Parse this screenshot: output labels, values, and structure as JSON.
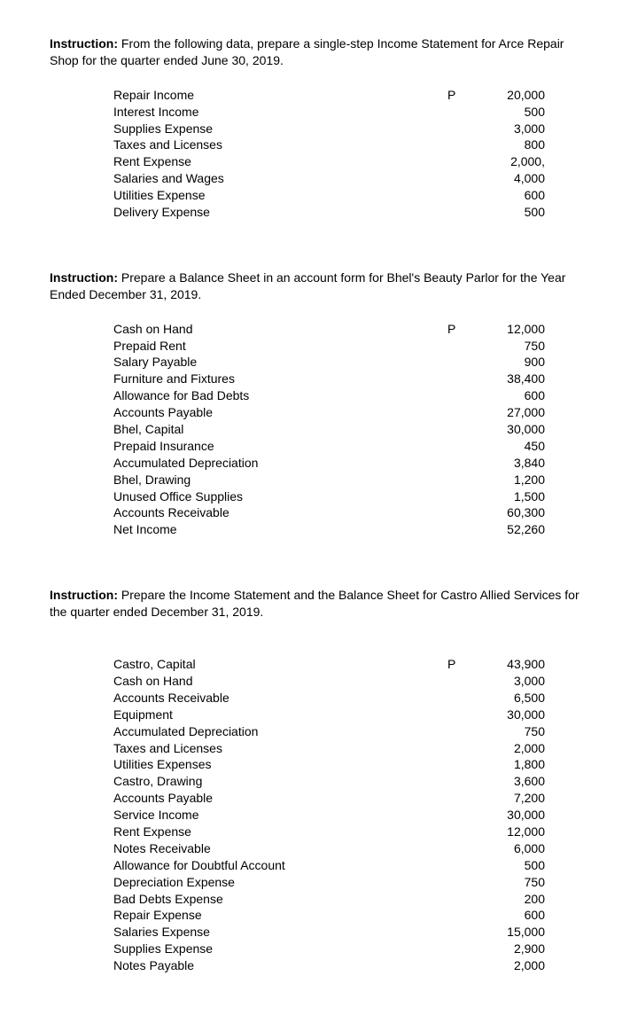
{
  "sections": [
    {
      "instruction_label": "Instruction:",
      "instruction_text": " From the following data, prepare a single-step Income Statement for Arce Repair Shop for the quarter ended June 30, 2019.",
      "currency": "P",
      "rows": [
        {
          "label": "Repair Income",
          "amount": "20,000",
          "showCurrency": true
        },
        {
          "label": "Interest Income",
          "amount": "500"
        },
        {
          "label": "Supplies Expense",
          "amount": "3,000"
        },
        {
          "label": "Taxes and Licenses",
          "amount": "800"
        },
        {
          "label": "Rent Expense",
          "amount": "2,000,"
        },
        {
          "label": "Salaries and Wages",
          "amount": "4,000"
        },
        {
          "label": "Utilities Expense",
          "amount": "600"
        },
        {
          "label": "Delivery Expense",
          "amount": "500"
        }
      ]
    },
    {
      "instruction_label": "Instruction:",
      "instruction_text": " Prepare a Balance Sheet in an account form for Bhel's Beauty Parlor for the Year Ended December 31, 2019.",
      "currency": "P",
      "rows": [
        {
          "label": "Cash on Hand",
          "amount": "12,000",
          "showCurrency": true
        },
        {
          "label": "Prepaid Rent",
          "amount": "750"
        },
        {
          "label": "Salary Payable",
          "amount": "900"
        },
        {
          "label": "Furniture and Fixtures",
          "amount": "38,400"
        },
        {
          "label": "Allowance for Bad Debts",
          "amount": "600"
        },
        {
          "label": "Accounts Payable",
          "amount": "27,000"
        },
        {
          "label": "Bhel, Capital",
          "amount": "30,000"
        },
        {
          "label": "Prepaid Insurance",
          "amount": "450"
        },
        {
          "label": "Accumulated Depreciation",
          "amount": "3,840"
        },
        {
          "label": "Bhel, Drawing",
          "amount": "1,200"
        },
        {
          "label": "Unused Office Supplies",
          "amount": "1,500"
        },
        {
          "label": "Accounts Receivable",
          "amount": "60,300"
        },
        {
          "label": "Net Income",
          "amount": "52,260"
        }
      ]
    },
    {
      "instruction_label": "Instruction:",
      "instruction_text": " Prepare the Income Statement and the Balance Sheet for Castro Allied Services for the quarter ended December 31, 2019.",
      "currency": "P",
      "extra_gap_before_rows": true,
      "rows": [
        {
          "label": "Castro, Capital",
          "amount": "43,900",
          "showCurrency": true
        },
        {
          "label": "Cash on Hand",
          "amount": "3,000"
        },
        {
          "label": "Accounts Receivable",
          "amount": "6,500"
        },
        {
          "label": "Equipment",
          "amount": "30,000"
        },
        {
          "label": "Accumulated Depreciation",
          "amount": "750"
        },
        {
          "label": "Taxes and Licenses",
          "amount": "2,000"
        },
        {
          "label": "Utilities Expenses",
          "amount": "1,800"
        },
        {
          "label": "Castro, Drawing",
          "amount": "3,600"
        },
        {
          "label": "Accounts Payable",
          "amount": "7,200"
        },
        {
          "label": "Service Income",
          "amount": "30,000"
        },
        {
          "label": "Rent Expense",
          "amount": "12,000"
        },
        {
          "label": "Notes Receivable",
          "amount": "6,000"
        },
        {
          "label": "Allowance for Doubtful Account",
          "amount": "500"
        },
        {
          "label": "Depreciation Expense",
          "amount": "750"
        },
        {
          "label": "Bad Debts Expense",
          "amount": "200"
        },
        {
          "label": "Repair Expense",
          "amount": "600"
        },
        {
          "label": "Salaries Expense",
          "amount": "15,000"
        },
        {
          "label": "Supplies Expense",
          "amount": "2,900"
        },
        {
          "label": "Notes Payable",
          "amount": "2,000"
        }
      ]
    }
  ]
}
